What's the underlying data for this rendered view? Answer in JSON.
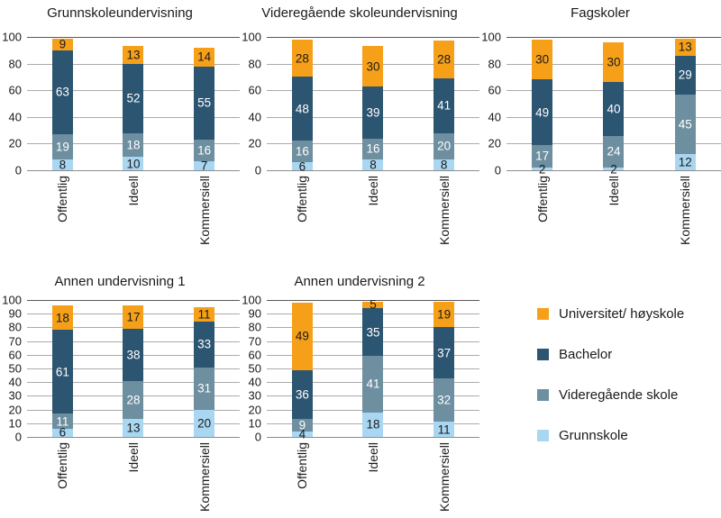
{
  "figure": {
    "background": "#ffffff",
    "text_color": "#1a1a1a"
  },
  "colors": {
    "universitet_hoyskole": "#F6A019",
    "bachelor": "#2C5571",
    "videregaende_skole": "#6D8F9F",
    "grunnskole": "#A9D7F2",
    "grid_inner": "#ababab",
    "grid_top": "#595959",
    "grid_zero": "#8c8c8c"
  },
  "series_meta": [
    {
      "name": "Grunnskole",
      "color": "#A9D7F2",
      "label_color": "#1a1a1a"
    },
    {
      "name": "Videregående skole",
      "color": "#6D8F9F",
      "label_color": "#ffffff"
    },
    {
      "name": "Bachelor",
      "color": "#2C5571",
      "label_color": "#ffffff"
    },
    {
      "name": "Universitet/ høyskole",
      "color": "#F6A019",
      "label_color": "#1a1a1a"
    }
  ],
  "legend": {
    "items": [
      {
        "label": "Universitet/ høyskole",
        "color": "#F6A019"
      },
      {
        "label": "Bachelor",
        "color": "#2C5571"
      },
      {
        "label": "Videregående skole",
        "color": "#6D8F9F"
      },
      {
        "label": "Grunnskole",
        "color": "#A9D7F2"
      }
    ]
  },
  "chart_data": [
    {
      "type": "bar",
      "stacked": true,
      "title": "Grunnskoleundervisning",
      "categories": [
        "Offentlig",
        "Ideell",
        "Kommersiell"
      ],
      "series": [
        {
          "name": "Grunnskole",
          "values": [
            8,
            10,
            7
          ]
        },
        {
          "name": "Videregående skole",
          "values": [
            19,
            18,
            16
          ]
        },
        {
          "name": "Bachelor",
          "values": [
            63,
            52,
            55
          ]
        },
        {
          "name": "Universitet/ høyskole",
          "values": [
            9,
            13,
            14
          ]
        }
      ],
      "ylim": [
        0,
        100
      ],
      "ytick_step": 20,
      "grid": true,
      "legend_position": "shared-bottom-right"
    },
    {
      "type": "bar",
      "stacked": true,
      "title": "Videregående skoleundervisning",
      "categories": [
        "Offentlig",
        "Ideell",
        "Kommersiell"
      ],
      "series": [
        {
          "name": "Grunnskole",
          "values": [
            6,
            8,
            8
          ]
        },
        {
          "name": "Videregående skole",
          "values": [
            16,
            16,
            20
          ]
        },
        {
          "name": "Bachelor",
          "values": [
            48,
            39,
            41
          ]
        },
        {
          "name": "Universitet/ høyskole",
          "values": [
            28,
            30,
            28
          ]
        }
      ],
      "ylim": [
        0,
        100
      ],
      "ytick_step": 20,
      "grid": true,
      "legend_position": "shared-bottom-right"
    },
    {
      "type": "bar",
      "stacked": true,
      "title": "Fagskoler",
      "categories": [
        "Offentlig",
        "Ideell",
        "Kommersiell"
      ],
      "series": [
        {
          "name": "Grunnskole",
          "values": [
            2,
            2,
            12
          ]
        },
        {
          "name": "Videregående skole",
          "values": [
            17,
            24,
            45
          ]
        },
        {
          "name": "Bachelor",
          "values": [
            49,
            40,
            29
          ]
        },
        {
          "name": "Universitet/ høyskole",
          "values": [
            30,
            30,
            13
          ]
        }
      ],
      "ylim": [
        0,
        100
      ],
      "ytick_step": 20,
      "grid": true,
      "legend_position": "shared-bottom-right"
    },
    {
      "type": "bar",
      "stacked": true,
      "title": "Annen undervisning 1",
      "categories": [
        "Offentlig",
        "Ideell",
        "Kommersiell"
      ],
      "series": [
        {
          "name": "Grunnskole",
          "values": [
            6,
            13,
            20
          ]
        },
        {
          "name": "Videregående skole",
          "values": [
            11,
            28,
            31
          ]
        },
        {
          "name": "Bachelor",
          "values": [
            61,
            38,
            33
          ]
        },
        {
          "name": "Universitet/ høyskole",
          "values": [
            18,
            17,
            11
          ]
        }
      ],
      "ylim": [
        0,
        100
      ],
      "ytick_step": 10,
      "grid": true,
      "legend_position": "shared-bottom-right"
    },
    {
      "type": "bar",
      "stacked": true,
      "title": "Annen undervisning 2",
      "categories": [
        "Offentlig",
        "Ideell",
        "Kommersiell"
      ],
      "series": [
        {
          "name": "Grunnskole",
          "values": [
            4,
            18,
            11
          ]
        },
        {
          "name": "Videregående skole",
          "values": [
            9,
            41,
            32
          ]
        },
        {
          "name": "Bachelor",
          "values": [
            36,
            35,
            37
          ]
        },
        {
          "name": "Universitet/ høyskole",
          "values": [
            49,
            5,
            19
          ]
        }
      ],
      "ylim": [
        0,
        100
      ],
      "ytick_step": 10,
      "grid": true,
      "legend_position": "shared-bottom-right"
    }
  ]
}
